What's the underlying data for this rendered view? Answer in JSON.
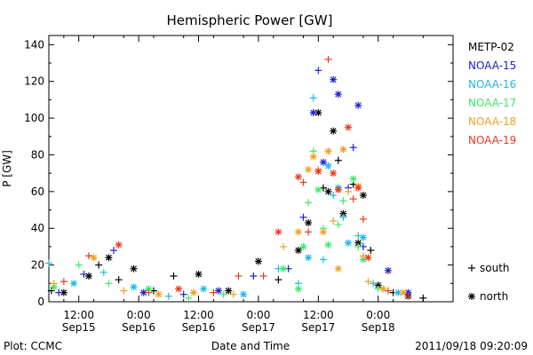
{
  "chart_data": {
    "type": "scatter",
    "title": "Hemispheric Power [GW]",
    "xlabel": "Date and Time",
    "ylabel": "P [GW]",
    "ylim": [
      0,
      145
    ],
    "yticks": [
      0,
      20,
      40,
      60,
      80,
      100,
      120,
      140
    ],
    "xlim_hours": [
      0,
      81
    ],
    "xticks": [
      {
        "h": 6,
        "time": "12:00",
        "date": "Sep15"
      },
      {
        "h": 18,
        "time": "0:00",
        "date": "Sep16"
      },
      {
        "h": 30,
        "time": "12:00",
        "date": "Sep16"
      },
      {
        "h": 42,
        "time": "0:00",
        "date": "Sep17"
      },
      {
        "h": 54,
        "time": "12:00",
        "date": "Sep17"
      },
      {
        "h": 66,
        "time": "0:00",
        "date": "Sep18"
      }
    ],
    "legend": {
      "placement": "right",
      "satellites": [
        {
          "name": "METP-02",
          "color": "#000000"
        },
        {
          "name": "NOAA-15",
          "color": "#1f1fcf"
        },
        {
          "name": "NOAA-16",
          "color": "#1fb8e8"
        },
        {
          "name": "NOAA-17",
          "color": "#3ee86a"
        },
        {
          "name": "NOAA-18",
          "color": "#f0a020"
        },
        {
          "name": "NOAA-19",
          "color": "#e83a1f"
        }
      ],
      "symbols": [
        {
          "symbol": "+",
          "label": "south"
        },
        {
          "symbol": "*",
          "label": "north"
        }
      ]
    },
    "series": [
      {
        "name": "METP-02",
        "color": "#000000",
        "points": [
          [
            0.5,
            6,
            "+"
          ],
          [
            3,
            5,
            "*"
          ],
          [
            8,
            14,
            "*"
          ],
          [
            10,
            20,
            "+"
          ],
          [
            12,
            24,
            "*"
          ],
          [
            14,
            12,
            "+"
          ],
          [
            17,
            18,
            "*"
          ],
          [
            21,
            6,
            "+"
          ],
          [
            25,
            14,
            "+"
          ],
          [
            30,
            15,
            "*"
          ],
          [
            36,
            6,
            "*"
          ],
          [
            42,
            22,
            "*"
          ],
          [
            46,
            12,
            "+"
          ],
          [
            50,
            28,
            "*"
          ],
          [
            52,
            43,
            "*"
          ],
          [
            54,
            103,
            "*"
          ],
          [
            55,
            62,
            "+"
          ],
          [
            56,
            60,
            "*"
          ],
          [
            57,
            93,
            "*"
          ],
          [
            58,
            77,
            "+"
          ],
          [
            59,
            48,
            "*"
          ],
          [
            61,
            64,
            "+"
          ],
          [
            62,
            32,
            "*"
          ],
          [
            63,
            58,
            "*"
          ],
          [
            64.5,
            28,
            "+"
          ],
          [
            66,
            9,
            "*"
          ],
          [
            69,
            5,
            "+"
          ],
          [
            72,
            3,
            "*"
          ],
          [
            75,
            2,
            "+"
          ]
        ]
      },
      {
        "name": "NOAA-15",
        "color": "#1f1fcf",
        "points": [
          [
            2,
            5,
            "+"
          ],
          [
            7,
            15,
            "+"
          ],
          [
            13,
            28,
            "+"
          ],
          [
            19,
            5,
            "*"
          ],
          [
            27,
            4,
            "+"
          ],
          [
            34,
            6,
            "*"
          ],
          [
            41,
            14,
            "+"
          ],
          [
            48,
            18,
            "+"
          ],
          [
            51,
            46,
            "+"
          ],
          [
            53,
            103,
            "*"
          ],
          [
            54,
            126,
            "+"
          ],
          [
            55,
            76,
            "*"
          ],
          [
            57,
            121,
            "*"
          ],
          [
            58,
            113,
            "*"
          ],
          [
            60,
            62,
            "+"
          ],
          [
            61,
            84,
            "+"
          ],
          [
            62,
            107,
            "*"
          ],
          [
            63,
            30,
            "+"
          ],
          [
            68,
            17,
            "*"
          ],
          [
            72,
            5,
            "*"
          ]
        ]
      },
      {
        "name": "NOAA-16",
        "color": "#1fb8e8",
        "points": [
          [
            0,
            21,
            "+"
          ],
          [
            5,
            10,
            "*"
          ],
          [
            11,
            16,
            "+"
          ],
          [
            17,
            8,
            "*"
          ],
          [
            24,
            3,
            "+"
          ],
          [
            31,
            7,
            "*"
          ],
          [
            39,
            4,
            "*"
          ],
          [
            46,
            18,
            "+"
          ],
          [
            50,
            10,
            "+"
          ],
          [
            52,
            24,
            "*"
          ],
          [
            53,
            111,
            "+"
          ],
          [
            55,
            23,
            "+"
          ],
          [
            56,
            74,
            "*"
          ],
          [
            57,
            58,
            "+"
          ],
          [
            58,
            62,
            "*"
          ],
          [
            59,
            46,
            "+"
          ],
          [
            60,
            32,
            "*"
          ],
          [
            62,
            36,
            "+"
          ],
          [
            63,
            35,
            "*"
          ],
          [
            65,
            10,
            "+"
          ],
          [
            70,
            5,
            "*"
          ]
        ]
      },
      {
        "name": "NOAA-17",
        "color": "#3ee86a",
        "points": [
          [
            1,
            8,
            "*"
          ],
          [
            6,
            20,
            "+"
          ],
          [
            12,
            10,
            "+"
          ],
          [
            20,
            7,
            "*"
          ],
          [
            28,
            2,
            "+"
          ],
          [
            35,
            4,
            "+"
          ],
          [
            47,
            18,
            "*"
          ],
          [
            50,
            7,
            "*"
          ],
          [
            51,
            30,
            "*"
          ],
          [
            52,
            54,
            "+"
          ],
          [
            53,
            82,
            "+"
          ],
          [
            54,
            61,
            "*"
          ],
          [
            55,
            40,
            "+"
          ],
          [
            56,
            31,
            "*"
          ],
          [
            58,
            42,
            "+"
          ],
          [
            59,
            55,
            "+"
          ],
          [
            61,
            67,
            "*"
          ],
          [
            62,
            30,
            "+"
          ],
          [
            63,
            23,
            "*"
          ],
          [
            66,
            7,
            "+"
          ]
        ]
      },
      {
        "name": "NOAA-18",
        "color": "#f0a020",
        "points": [
          [
            1,
            10,
            "+"
          ],
          [
            9,
            24,
            "*"
          ],
          [
            15,
            6,
            "+"
          ],
          [
            22,
            4,
            "*"
          ],
          [
            29,
            5,
            "*"
          ],
          [
            37,
            4,
            "+"
          ],
          [
            47,
            30,
            "+"
          ],
          [
            50,
            38,
            "*"
          ],
          [
            52,
            72,
            "*"
          ],
          [
            53,
            79,
            "*"
          ],
          [
            54,
            72,
            "+"
          ],
          [
            55,
            38,
            "*"
          ],
          [
            56,
            82,
            "*"
          ],
          [
            57,
            44,
            "+"
          ],
          [
            58,
            18,
            "*"
          ],
          [
            59,
            83,
            "*"
          ],
          [
            60,
            60,
            "+"
          ],
          [
            62,
            63,
            "*"
          ],
          [
            63,
            25,
            "+"
          ],
          [
            64,
            11,
            "+"
          ],
          [
            67,
            7,
            "*"
          ],
          [
            71,
            5,
            "*"
          ]
        ]
      },
      {
        "name": "NOAA-19",
        "color": "#e83a1f",
        "points": [
          [
            3,
            11,
            "+"
          ],
          [
            8,
            25,
            "+"
          ],
          [
            14,
            31,
            "*"
          ],
          [
            20,
            5,
            "+"
          ],
          [
            26,
            7,
            "*"
          ],
          [
            33,
            5,
            "+"
          ],
          [
            38,
            14,
            "+"
          ],
          [
            43,
            14,
            "+"
          ],
          [
            46,
            38,
            "*"
          ],
          [
            50,
            68,
            "*"
          ],
          [
            51,
            65,
            "+"
          ],
          [
            52,
            38,
            "+"
          ],
          [
            54,
            71,
            "*"
          ],
          [
            56,
            132,
            "+"
          ],
          [
            57,
            70,
            "*"
          ],
          [
            58,
            61,
            "*"
          ],
          [
            60,
            95,
            "*"
          ],
          [
            61,
            56,
            "+"
          ],
          [
            62,
            62,
            "*"
          ],
          [
            63,
            45,
            "+"
          ],
          [
            64,
            24,
            "*"
          ],
          [
            68,
            6,
            "+"
          ],
          [
            72,
            3,
            "+"
          ]
        ]
      }
    ]
  },
  "footer": {
    "left": "Plot: CCMC",
    "right": "2011/09/18 09:20:09"
  }
}
